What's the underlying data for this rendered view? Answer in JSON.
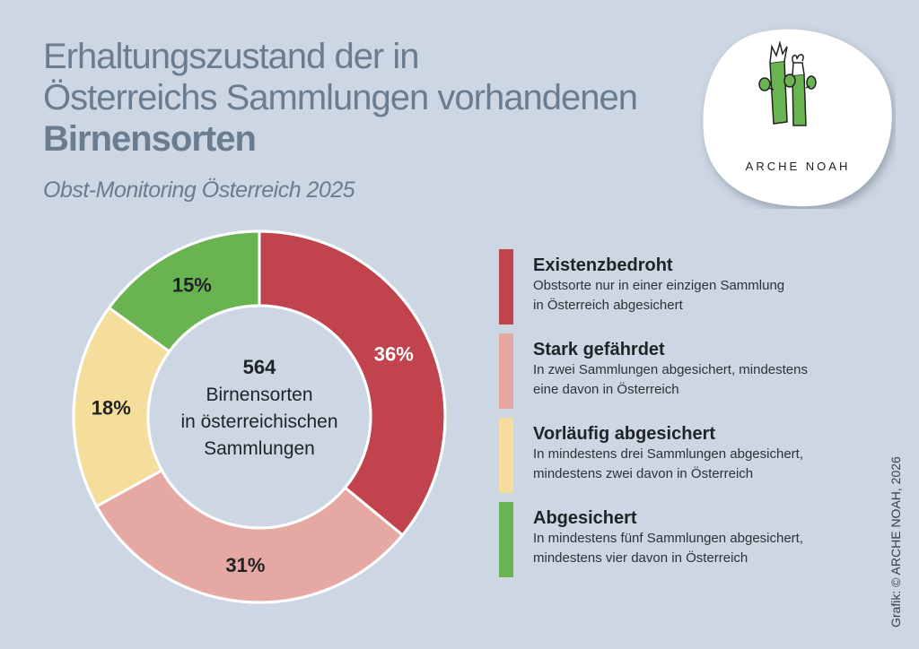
{
  "header": {
    "title_line1": "Erhaltungszustand der in",
    "title_line2": "Österreichs Sammlungen vorhandenen",
    "title_line3": "Birnensorten",
    "subtitle": "Obst-Monitoring Österreich 2025"
  },
  "logo": {
    "text": "ARCHE NOAH",
    "icon": "plant-stems-icon"
  },
  "credit": "Grafik: © ARCHE NOAH, 2026",
  "chart_data": {
    "type": "pie",
    "variant": "donut",
    "title": "Erhaltungszustand der in Österreichs Sammlungen vorhandenen Birnensorten",
    "center_label": {
      "value": "564",
      "line1": "Birnensorten",
      "line2": "in österreichischen",
      "line3": "Sammlungen"
    },
    "start": "top",
    "direction": "clockwise",
    "slices": [
      {
        "name": "Existenzbedroht",
        "value": 36,
        "label": "36%",
        "color": "#c1434d",
        "label_color": "#ffffff"
      },
      {
        "name": "Stark gefährdet",
        "value": 31,
        "label": "31%",
        "color": "#e6a8a3",
        "label_color": "#1f2326"
      },
      {
        "name": "Vorläufig abgesichert",
        "value": 18,
        "label": "18%",
        "color": "#f5dd9b",
        "label_color": "#1f2326"
      },
      {
        "name": "Abgesichert",
        "value": 15,
        "label": "15%",
        "color": "#6ab351",
        "label_color": "#1f2326"
      }
    ],
    "legend_position": "right"
  },
  "legend": [
    {
      "title": "Existenzbedroht",
      "desc1": "Obstsorte nur in einer einzigen Sammlung",
      "desc2": "in Österreich abgesichert",
      "color": "#c1434d"
    },
    {
      "title": "Stark gefährdet",
      "desc1": "In zwei Sammlungen abgesichert, mindestens",
      "desc2": "eine davon in Österreich",
      "color": "#e6a8a3"
    },
    {
      "title": "Vorläufig abgesichert",
      "desc1": "In mindestens drei Sammlungen abgesichert,",
      "desc2": "mindestens zwei davon in Österreich",
      "color": "#f5dd9b"
    },
    {
      "title": "Abgesichert",
      "desc1": "In mindestens fünf Sammlungen abgesichert,",
      "desc2": "mindestens vier davon in Österreich",
      "color": "#6ab351"
    }
  ]
}
